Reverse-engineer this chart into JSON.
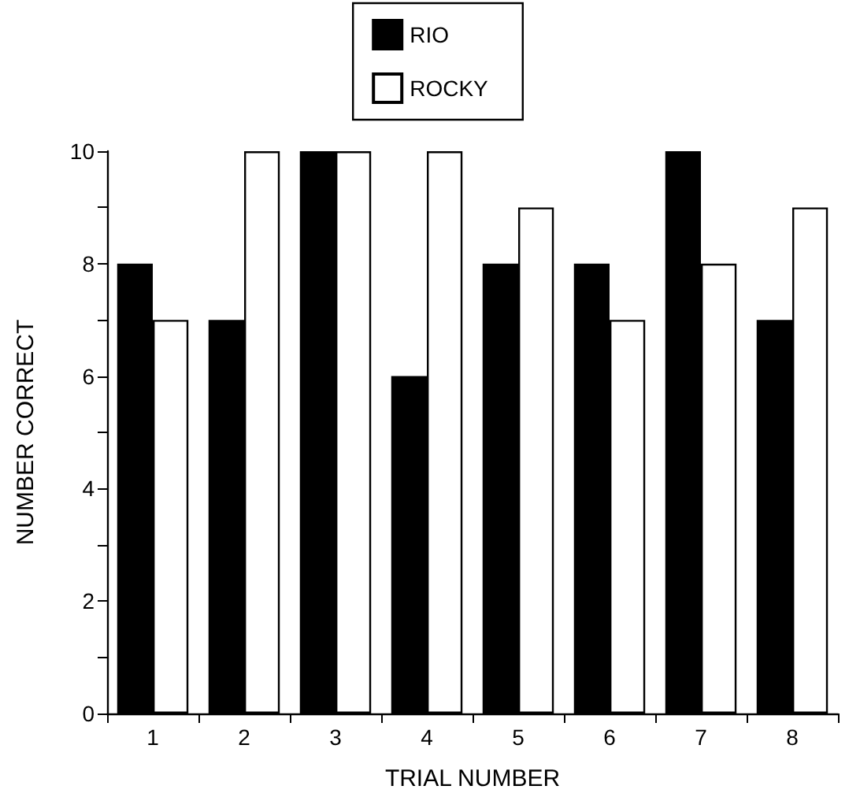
{
  "chart_data": {
    "type": "bar",
    "xlabel": "TRIAL NUMBER",
    "ylabel": "NUMBER CORRECT",
    "categories": [
      "1",
      "2",
      "3",
      "4",
      "5",
      "6",
      "7",
      "8"
    ],
    "series": [
      {
        "name": "RIO",
        "color": "#000000",
        "values": [
          8,
          7,
          10,
          6,
          8,
          8,
          10,
          7
        ]
      },
      {
        "name": "ROCKY",
        "color": "#ffffff",
        "values": [
          7,
          10,
          10,
          10,
          9,
          7,
          8,
          9
        ]
      }
    ],
    "ylim": [
      0,
      10
    ],
    "yticks": [
      0,
      2,
      4,
      6,
      8,
      10
    ],
    "legend": "top"
  }
}
